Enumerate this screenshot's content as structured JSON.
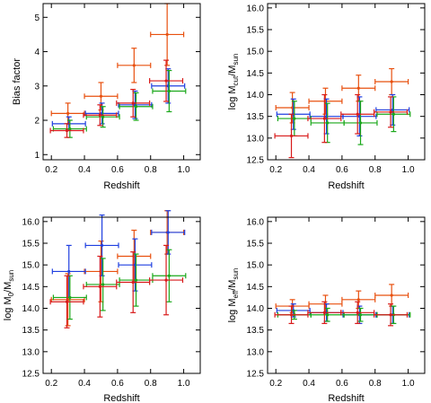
{
  "series_colors": {
    "orange": "#e8500f",
    "blue": "#1f3fe0",
    "green": "#1aa81a",
    "red": "#d81a1a"
  },
  "chart_data": [
    {
      "type": "scatter",
      "xlabel": "Redshift",
      "ylabel": "Bias factor",
      "xlim": [
        0.15,
        1.1
      ],
      "ylim": [
        0.85,
        5.4
      ],
      "xticks": [
        0.2,
        0.4,
        0.6,
        0.8,
        1.0
      ],
      "yticks": [
        1,
        2,
        3,
        4,
        5
      ],
      "ytick_labels": [
        "1",
        "2",
        "3",
        "4",
        "5"
      ],
      "grid": false,
      "series": [
        {
          "color": "orange",
          "points": [
            {
              "x": 0.3,
              "y": 2.2,
              "xerr": 0.1,
              "yerr": 0.3
            },
            {
              "x": 0.5,
              "y": 2.7,
              "xerr": 0.1,
              "yerr": 0.4
            },
            {
              "x": 0.7,
              "y": 3.6,
              "xerr": 0.1,
              "yerr": 0.5
            },
            {
              "x": 0.9,
              "y": 4.5,
              "xerr": 0.1,
              "yerr": 0.9
            }
          ]
        },
        {
          "color": "blue",
          "points": [
            {
              "x": 0.3,
              "y": 1.9,
              "xerr": 0.1,
              "yerr": 0.2
            },
            {
              "x": 0.5,
              "y": 2.2,
              "xerr": 0.1,
              "yerr": 0.3
            },
            {
              "x": 0.7,
              "y": 2.45,
              "xerr": 0.1,
              "yerr": 0.4
            },
            {
              "x": 0.9,
              "y": 3.0,
              "xerr": 0.1,
              "yerr": 0.5
            }
          ]
        },
        {
          "color": "green",
          "points": [
            {
              "x": 0.3,
              "y": 1.75,
              "xerr": 0.1,
              "yerr": 0.25
            },
            {
              "x": 0.5,
              "y": 2.1,
              "xerr": 0.1,
              "yerr": 0.3
            },
            {
              "x": 0.7,
              "y": 2.4,
              "xerr": 0.1,
              "yerr": 0.4
            },
            {
              "x": 0.9,
              "y": 2.85,
              "xerr": 0.1,
              "yerr": 0.6
            }
          ]
        },
        {
          "color": "red",
          "points": [
            {
              "x": 0.3,
              "y": 1.7,
              "xerr": 0.1,
              "yerr": 0.2
            },
            {
              "x": 0.5,
              "y": 2.15,
              "xerr": 0.1,
              "yerr": 0.3
            },
            {
              "x": 0.7,
              "y": 2.5,
              "xerr": 0.1,
              "yerr": 0.4
            },
            {
              "x": 0.9,
              "y": 3.15,
              "xerr": 0.1,
              "yerr": 0.6
            }
          ]
        }
      ]
    },
    {
      "type": "scatter",
      "xlabel": "Redshift",
      "ylabel": "log M_cut/M_sun",
      "ylabel_main": "log M",
      "ylabel_sub": "cut",
      "ylabel_mid": "/M",
      "ylabel_sub2": "sun",
      "xlim": [
        0.15,
        1.1
      ],
      "ylim": [
        12.5,
        16.1
      ],
      "xticks": [
        0.2,
        0.4,
        0.6,
        0.8,
        1.0
      ],
      "yticks": [
        12.5,
        13.0,
        13.5,
        14.0,
        14.5,
        15.0,
        15.5,
        16.0
      ],
      "ytick_labels": [
        "12.5",
        "13.0",
        "13.5",
        "14.0",
        "14.5",
        "15.0",
        "15.5",
        "16.0"
      ],
      "grid": false,
      "series": [
        {
          "color": "orange",
          "points": [
            {
              "x": 0.3,
              "y": 13.7,
              "xerr": 0.1,
              "yerr": 0.35
            },
            {
              "x": 0.5,
              "y": 13.85,
              "xerr": 0.1,
              "yerr": 0.3
            },
            {
              "x": 0.7,
              "y": 14.15,
              "xerr": 0.1,
              "yerr": 0.3
            },
            {
              "x": 0.9,
              "y": 14.3,
              "xerr": 0.1,
              "yerr": 0.3
            }
          ]
        },
        {
          "color": "blue",
          "points": [
            {
              "x": 0.3,
              "y": 13.55,
              "xerr": 0.1,
              "yerr": 0.35
            },
            {
              "x": 0.5,
              "y": 13.5,
              "xerr": 0.1,
              "yerr": 0.4
            },
            {
              "x": 0.7,
              "y": 13.5,
              "xerr": 0.1,
              "yerr": 0.45
            },
            {
              "x": 0.9,
              "y": 13.65,
              "xerr": 0.1,
              "yerr": 0.35
            }
          ]
        },
        {
          "color": "green",
          "points": [
            {
              "x": 0.3,
              "y": 13.45,
              "xerr": 0.1,
              "yerr": 0.4
            },
            {
              "x": 0.5,
              "y": 13.35,
              "xerr": 0.1,
              "yerr": 0.45
            },
            {
              "x": 0.7,
              "y": 13.35,
              "xerr": 0.1,
              "yerr": 0.5
            },
            {
              "x": 0.9,
              "y": 13.55,
              "xerr": 0.1,
              "yerr": 0.4
            }
          ]
        },
        {
          "color": "red",
          "points": [
            {
              "x": 0.3,
              "y": 13.05,
              "xerr": 0.1,
              "yerr": 0.5
            },
            {
              "x": 0.5,
              "y": 13.45,
              "xerr": 0.1,
              "yerr": 0.55
            },
            {
              "x": 0.7,
              "y": 13.55,
              "xerr": 0.1,
              "yerr": 0.45
            },
            {
              "x": 0.9,
              "y": 13.6,
              "xerr": 0.1,
              "yerr": 0.35
            }
          ]
        }
      ]
    },
    {
      "type": "scatter",
      "xlabel": "Redshift",
      "ylabel": "log M_0/M_sun",
      "ylabel_main": "log M",
      "ylabel_sub": "0",
      "ylabel_mid": "/M",
      "ylabel_sub2": "sun",
      "xlim": [
        0.15,
        1.1
      ],
      "ylim": [
        12.5,
        16.1
      ],
      "xticks": [
        0.2,
        0.4,
        0.6,
        0.8,
        1.0
      ],
      "yticks": [
        12.5,
        13.0,
        13.5,
        14.0,
        14.5,
        15.0,
        15.5,
        16.0
      ],
      "ytick_labels": [
        "12.5",
        "13.0",
        "13.5",
        "14.0",
        "14.5",
        "15.0",
        "15.5",
        "16.0"
      ],
      "grid": false,
      "series": [
        {
          "color": "orange",
          "points": [
            {
              "x": 0.3,
              "y": 14.2,
              "xerr": 0.1,
              "yerr": 0.6
            },
            {
              "x": 0.5,
              "y": 14.85,
              "xerr": 0.1,
              "yerr": 0.7
            },
            {
              "x": 0.7,
              "y": 15.2,
              "xerr": 0.1,
              "yerr": 0.6
            },
            {
              "x": 0.9,
              "y": 15.75,
              "xerr": 0.1,
              "yerr": 0.5
            }
          ]
        },
        {
          "color": "blue",
          "points": [
            {
              "x": 0.3,
              "y": 14.85,
              "xerr": 0.1,
              "yerr": 0.6
            },
            {
              "x": 0.5,
              "y": 15.45,
              "xerr": 0.1,
              "yerr": 0.7
            },
            {
              "x": 0.7,
              "y": 15.0,
              "xerr": 0.1,
              "yerr": 0.6
            },
            {
              "x": 0.9,
              "y": 15.75,
              "xerr": 0.1,
              "yerr": 0.5
            }
          ]
        },
        {
          "color": "green",
          "points": [
            {
              "x": 0.3,
              "y": 14.25,
              "xerr": 0.1,
              "yerr": 0.5
            },
            {
              "x": 0.5,
              "y": 14.55,
              "xerr": 0.1,
              "yerr": 0.6
            },
            {
              "x": 0.7,
              "y": 14.65,
              "xerr": 0.1,
              "yerr": 0.6
            },
            {
              "x": 0.9,
              "y": 14.75,
              "xerr": 0.1,
              "yerr": 0.6
            }
          ]
        },
        {
          "color": "red",
          "points": [
            {
              "x": 0.3,
              "y": 14.15,
              "xerr": 0.1,
              "yerr": 0.6
            },
            {
              "x": 0.5,
              "y": 14.5,
              "xerr": 0.1,
              "yerr": 0.7
            },
            {
              "x": 0.7,
              "y": 14.6,
              "xerr": 0.1,
              "yerr": 0.7
            },
            {
              "x": 0.9,
              "y": 14.65,
              "xerr": 0.1,
              "yerr": 0.8
            }
          ]
        }
      ]
    },
    {
      "type": "scatter",
      "xlabel": "Redshift",
      "ylabel": "log M_eff/M_sun",
      "ylabel_main": "log M",
      "ylabel_sub": "eff",
      "ylabel_mid": "/M",
      "ylabel_sub2": "sun",
      "xlim": [
        0.15,
        1.1
      ],
      "ylim": [
        12.5,
        16.1
      ],
      "xticks": [
        0.2,
        0.4,
        0.6,
        0.8,
        1.0
      ],
      "yticks": [
        12.5,
        13.0,
        13.5,
        14.0,
        14.5,
        15.0,
        15.5,
        16.0
      ],
      "ytick_labels": [
        "12.5",
        "13.0",
        "13.5",
        "14.0",
        "14.5",
        "15.0",
        "15.5",
        "16.0"
      ],
      "grid": false,
      "series": [
        {
          "color": "orange",
          "points": [
            {
              "x": 0.3,
              "y": 14.05,
              "xerr": 0.1,
              "yerr": 0.15
            },
            {
              "x": 0.5,
              "y": 14.1,
              "xerr": 0.1,
              "yerr": 0.2
            },
            {
              "x": 0.7,
              "y": 14.2,
              "xerr": 0.1,
              "yerr": 0.2
            },
            {
              "x": 0.9,
              "y": 14.3,
              "xerr": 0.1,
              "yerr": 0.25
            }
          ]
        },
        {
          "color": "blue",
          "points": [
            {
              "x": 0.3,
              "y": 13.95,
              "xerr": 0.1,
              "yerr": 0.15
            },
            {
              "x": 0.5,
              "y": 13.9,
              "xerr": 0.1,
              "yerr": 0.2
            },
            {
              "x": 0.7,
              "y": 13.85,
              "xerr": 0.1,
              "yerr": 0.2
            },
            {
              "x": 0.9,
              "y": 13.85,
              "xerr": 0.1,
              "yerr": 0.2
            }
          ]
        },
        {
          "color": "green",
          "points": [
            {
              "x": 0.3,
              "y": 13.85,
              "xerr": 0.1,
              "yerr": 0.1
            },
            {
              "x": 0.5,
              "y": 13.85,
              "xerr": 0.1,
              "yerr": 0.15
            },
            {
              "x": 0.7,
              "y": 13.85,
              "xerr": 0.1,
              "yerr": 0.15
            },
            {
              "x": 0.9,
              "y": 13.85,
              "xerr": 0.1,
              "yerr": 0.2
            }
          ]
        },
        {
          "color": "red",
          "points": [
            {
              "x": 0.3,
              "y": 13.85,
              "xerr": 0.1,
              "yerr": 0.2
            },
            {
              "x": 0.5,
              "y": 13.9,
              "xerr": 0.1,
              "yerr": 0.25
            },
            {
              "x": 0.7,
              "y": 13.9,
              "xerr": 0.1,
              "yerr": 0.25
            },
            {
              "x": 0.9,
              "y": 13.85,
              "xerr": 0.1,
              "yerr": 0.25
            }
          ]
        }
      ]
    }
  ]
}
